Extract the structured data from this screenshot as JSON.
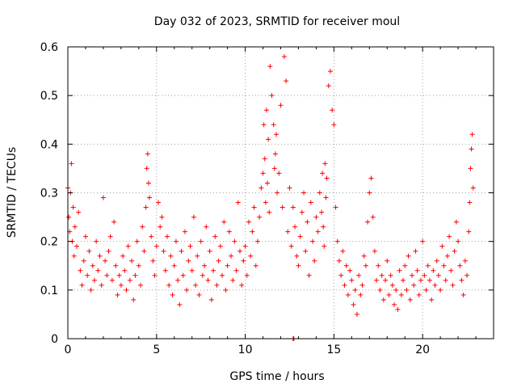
{
  "chart_data": {
    "type": "scatter",
    "title": "Day 032 of 2023, SRMTID for receiver moul",
    "xlabel": "GPS time / hours",
    "ylabel": "SRMTID / TECUs",
    "xlim": [
      0,
      24
    ],
    "ylim": [
      0,
      0.6
    ],
    "x_ticks": [
      0,
      5,
      10,
      15,
      20
    ],
    "x_tick_labels": [
      "0",
      "5",
      "10",
      "15",
      "20"
    ],
    "y_ticks": [
      0,
      0.1,
      0.2,
      0.3,
      0.4,
      0.5,
      0.6
    ],
    "y_tick_labels": [
      "0",
      "0.1",
      "0.2",
      "0.3",
      "0.4",
      "0.5",
      "0.6"
    ],
    "grid": true,
    "marker": "+",
    "color": "#ff0000",
    "series": [
      {
        "name": "SRMTID",
        "x": [
          0.0,
          0.05,
          0.1,
          0.15,
          0.2,
          0.25,
          0.3,
          0.35,
          0.4,
          0.5,
          0.6,
          0.7,
          0.8,
          0.9,
          1.0,
          1.1,
          1.2,
          1.3,
          1.4,
          1.5,
          1.6,
          1.7,
          1.8,
          1.9,
          2.0,
          2.1,
          2.2,
          2.3,
          2.4,
          2.5,
          2.6,
          2.7,
          2.8,
          2.9,
          3.0,
          3.1,
          3.2,
          3.3,
          3.4,
          3.5,
          3.6,
          3.7,
          3.8,
          3.9,
          4.0,
          4.1,
          4.2,
          4.3,
          4.4,
          4.45,
          4.5,
          4.55,
          4.6,
          4.7,
          4.8,
          4.9,
          5.0,
          5.1,
          5.2,
          5.3,
          5.4,
          5.5,
          5.6,
          5.7,
          5.8,
          5.9,
          6.0,
          6.1,
          6.2,
          6.3,
          6.4,
          6.5,
          6.6,
          6.7,
          6.8,
          6.9,
          7.0,
          7.1,
          7.2,
          7.3,
          7.4,
          7.5,
          7.6,
          7.7,
          7.8,
          7.9,
          8.0,
          8.1,
          8.2,
          8.3,
          8.4,
          8.5,
          8.6,
          8.7,
          8.8,
          8.9,
          9.0,
          9.1,
          9.2,
          9.3,
          9.4,
          9.5,
          9.6,
          9.7,
          9.8,
          9.9,
          10.0,
          10.1,
          10.2,
          10.3,
          10.4,
          10.5,
          10.6,
          10.7,
          10.8,
          10.9,
          11.0,
          11.05,
          11.1,
          11.15,
          11.2,
          11.25,
          11.3,
          11.35,
          11.4,
          11.5,
          11.6,
          11.65,
          11.7,
          11.75,
          11.8,
          11.9,
          12.0,
          12.1,
          12.2,
          12.3,
          12.4,
          12.5,
          12.6,
          12.7,
          12.8,
          12.9,
          13.0,
          13.1,
          13.2,
          13.3,
          13.4,
          13.5,
          13.6,
          13.7,
          13.8,
          13.9,
          14.0,
          14.1,
          14.2,
          14.3,
          14.35,
          14.4,
          14.45,
          14.5,
          14.55,
          14.6,
          14.7,
          14.8,
          14.9,
          15.0,
          15.1,
          15.2,
          15.3,
          15.4,
          15.5,
          15.6,
          15.7,
          15.8,
          15.9,
          16.0,
          16.1,
          16.2,
          16.3,
          16.4,
          16.5,
          16.6,
          16.7,
          16.8,
          16.9,
          17.0,
          17.1,
          17.2,
          17.3,
          17.4,
          17.5,
          17.6,
          17.7,
          17.8,
          17.9,
          18.0,
          18.1,
          18.2,
          18.3,
          18.4,
          18.5,
          18.6,
          18.7,
          18.8,
          18.9,
          19.0,
          19.1,
          19.2,
          19.3,
          19.4,
          19.5,
          19.6,
          19.7,
          19.8,
          19.9,
          20.0,
          20.1,
          20.2,
          20.3,
          20.4,
          20.5,
          20.6,
          20.7,
          20.8,
          20.9,
          21.0,
          21.1,
          21.2,
          21.3,
          21.4,
          21.5,
          21.6,
          21.7,
          21.8,
          21.9,
          22.0,
          22.1,
          22.2,
          22.3,
          22.4,
          22.5,
          22.6,
          22.65,
          22.7,
          22.75,
          22.8,
          22.85,
          12.7,
          12.72,
          12.74
        ],
        "y": [
          0.31,
          0.25,
          0.22,
          0.3,
          0.36,
          0.2,
          0.27,
          0.17,
          0.23,
          0.19,
          0.26,
          0.14,
          0.11,
          0.16,
          0.21,
          0.13,
          0.18,
          0.1,
          0.15,
          0.12,
          0.2,
          0.14,
          0.17,
          0.11,
          0.29,
          0.16,
          0.13,
          0.18,
          0.21,
          0.12,
          0.24,
          0.15,
          0.09,
          0.13,
          0.11,
          0.17,
          0.14,
          0.1,
          0.19,
          0.12,
          0.16,
          0.08,
          0.13,
          0.2,
          0.15,
          0.11,
          0.23,
          0.18,
          0.27,
          0.35,
          0.38,
          0.32,
          0.29,
          0.21,
          0.16,
          0.13,
          0.19,
          0.28,
          0.23,
          0.25,
          0.18,
          0.14,
          0.21,
          0.11,
          0.17,
          0.09,
          0.15,
          0.2,
          0.12,
          0.07,
          0.18,
          0.13,
          0.22,
          0.1,
          0.16,
          0.19,
          0.14,
          0.25,
          0.11,
          0.17,
          0.09,
          0.2,
          0.13,
          0.15,
          0.23,
          0.12,
          0.18,
          0.08,
          0.14,
          0.21,
          0.11,
          0.16,
          0.19,
          0.13,
          0.24,
          0.1,
          0.15,
          0.22,
          0.17,
          0.12,
          0.2,
          0.14,
          0.28,
          0.18,
          0.11,
          0.16,
          0.19,
          0.13,
          0.24,
          0.17,
          0.22,
          0.27,
          0.15,
          0.2,
          0.25,
          0.31,
          0.34,
          0.44,
          0.37,
          0.28,
          0.47,
          0.32,
          0.41,
          0.26,
          0.56,
          0.5,
          0.44,
          0.35,
          0.38,
          0.42,
          0.3,
          0.34,
          0.48,
          0.27,
          0.58,
          0.53,
          0.22,
          0.31,
          0.19,
          0.27,
          0.23,
          0.17,
          0.15,
          0.21,
          0.26,
          0.3,
          0.18,
          0.24,
          0.13,
          0.28,
          0.2,
          0.16,
          0.25,
          0.22,
          0.3,
          0.26,
          0.34,
          0.23,
          0.19,
          0.36,
          0.29,
          0.33,
          0.52,
          0.55,
          0.47,
          0.44,
          0.27,
          0.2,
          0.16,
          0.13,
          0.18,
          0.11,
          0.15,
          0.09,
          0.14,
          0.12,
          0.07,
          0.1,
          0.05,
          0.13,
          0.09,
          0.11,
          0.17,
          0.15,
          0.24,
          0.3,
          0.33,
          0.25,
          0.18,
          0.12,
          0.15,
          0.1,
          0.13,
          0.08,
          0.12,
          0.16,
          0.09,
          0.13,
          0.11,
          0.07,
          0.1,
          0.06,
          0.14,
          0.09,
          0.12,
          0.15,
          0.1,
          0.17,
          0.08,
          0.13,
          0.11,
          0.18,
          0.14,
          0.09,
          0.12,
          0.2,
          0.13,
          0.1,
          0.15,
          0.12,
          0.08,
          0.14,
          0.11,
          0.16,
          0.13,
          0.1,
          0.19,
          0.15,
          0.12,
          0.17,
          0.21,
          0.14,
          0.11,
          0.18,
          0.24,
          0.2,
          0.15,
          0.12,
          0.09,
          0.16,
          0.13,
          0.22,
          0.28,
          0.35,
          0.39,
          0.42,
          0.31,
          0.0,
          0.0,
          0.0
        ]
      }
    ]
  }
}
